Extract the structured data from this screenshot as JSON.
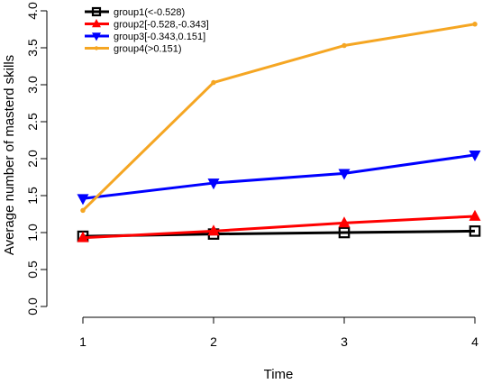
{
  "chart_data": {
    "type": "line",
    "title": "",
    "xlabel": "Time",
    "ylabel": "Average number of masterd skills",
    "x": [
      1,
      2,
      3,
      4
    ],
    "x_tick_labels": [
      "1",
      "2",
      "3",
      "4"
    ],
    "ylim": [
      0,
      4
    ],
    "y_ticks": [
      0.0,
      0.5,
      1.0,
      1.5,
      2.0,
      2.5,
      3.0,
      3.5,
      4.0
    ],
    "y_tick_labels": [
      "0.0",
      "0.5",
      "1.0",
      "1.5",
      "2.0",
      "2.5",
      "3.0",
      "3.5",
      "4.0"
    ],
    "grid": false,
    "legend_position": "top-left",
    "series": [
      {
        "name": "group1(<-0.528)",
        "values": [
          0.95,
          0.98,
          1.0,
          1.02
        ],
        "color": "#000000",
        "marker": "square"
      },
      {
        "name": "group2[-0.528,-0.343]",
        "values": [
          0.93,
          1.02,
          1.13,
          1.22
        ],
        "color": "#ff0000",
        "marker": "triangle-up"
      },
      {
        "name": "group3[-0.343,0.151]",
        "values": [
          1.46,
          1.67,
          1.8,
          2.05
        ],
        "color": "#0000ff",
        "marker": "triangle-down"
      },
      {
        "name": "group4(>0.151)",
        "values": [
          1.3,
          3.03,
          3.53,
          3.82
        ],
        "color": "#f5a623",
        "marker": "circle"
      }
    ]
  }
}
